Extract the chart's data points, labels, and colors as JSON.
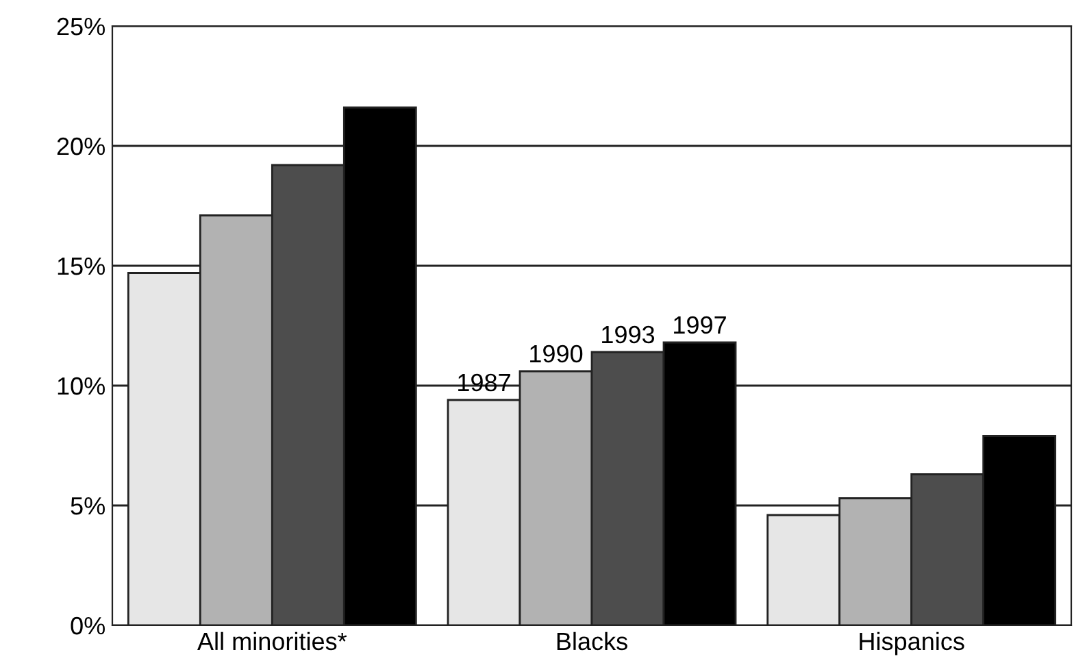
{
  "chart_data": {
    "type": "bar",
    "categories": [
      "All minorities*",
      "Blacks",
      "Hispanics"
    ],
    "series": [
      {
        "name": "1987",
        "color": "#e6e6e6",
        "values": [
          14.7,
          9.4,
          4.6
        ]
      },
      {
        "name": "1990",
        "color": "#b2b2b2",
        "values": [
          17.1,
          10.6,
          5.3
        ]
      },
      {
        "name": "1993",
        "color": "#4d4d4d",
        "values": [
          19.2,
          11.4,
          6.3
        ]
      },
      {
        "name": "1997",
        "color": "#000000",
        "values": [
          21.6,
          11.8,
          7.9
        ]
      }
    ],
    "ylim": [
      0,
      25
    ],
    "yticks": [
      {
        "value": 0,
        "label": "0%"
      },
      {
        "value": 5,
        "label": "5%"
      },
      {
        "value": 10,
        "label": "10%"
      },
      {
        "value": 15,
        "label": "15%"
      },
      {
        "value": 20,
        "label": "20%"
      },
      {
        "value": 25,
        "label": "25%"
      }
    ],
    "grid": "y",
    "legend": false
  }
}
